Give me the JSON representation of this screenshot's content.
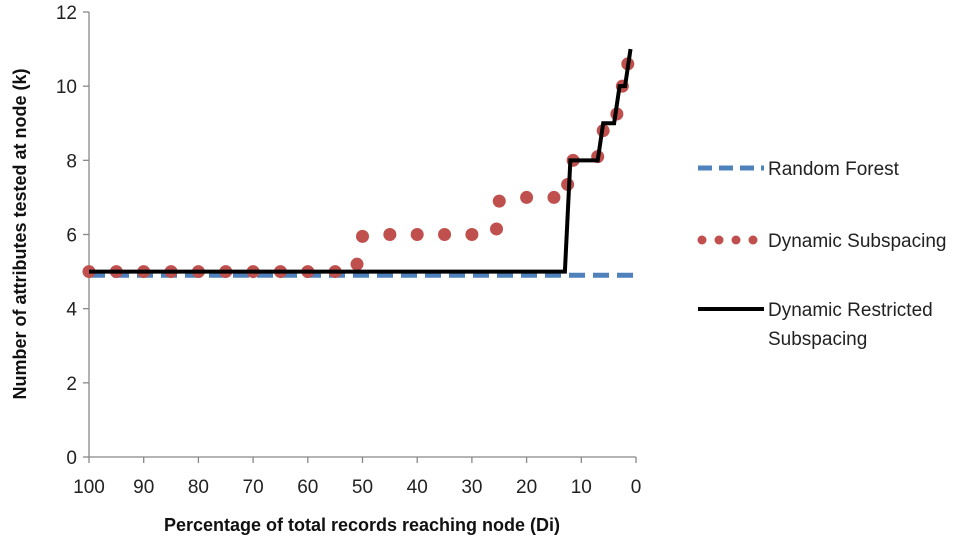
{
  "chart_data": {
    "type": "line",
    "xlabel": "Percentage of total records reaching node (Di)",
    "ylabel": "Number of attributes tested at node (k)",
    "xlim": [
      100,
      0
    ],
    "ylim": [
      0,
      12
    ],
    "x_ticks": [
      100,
      90,
      80,
      70,
      60,
      50,
      40,
      30,
      20,
      10,
      0
    ],
    "y_ticks": [
      0,
      2,
      4,
      6,
      8,
      10,
      12
    ],
    "grid": false,
    "legend_position": "right",
    "series": [
      {
        "name": "Random Forest",
        "style": "dashed",
        "color": "#4f81bd",
        "x": [
          100,
          0.5
        ],
        "y": [
          4.9,
          4.9
        ]
      },
      {
        "name": "Dynamic Subspacing",
        "style": "dotted",
        "color": "#c0504d",
        "x": [
          100,
          95,
          90,
          85,
          80,
          75,
          70,
          65,
          60,
          55,
          51,
          50,
          45,
          40,
          35,
          30,
          25.5,
          25,
          20,
          15,
          12.5,
          11.5,
          7,
          6,
          3.5,
          2.5,
          1.5
        ],
        "y": [
          5.0,
          5.0,
          5.0,
          5.0,
          5.0,
          5.0,
          5.0,
          5.0,
          5.0,
          5.0,
          5.2,
          5.95,
          6.0,
          6.0,
          6.0,
          6.0,
          6.15,
          6.9,
          7.0,
          7.0,
          7.35,
          8.0,
          8.1,
          8.8,
          9.25,
          10.0,
          10.6
        ]
      },
      {
        "name": "Dynamic Restricted Subspacing",
        "style": "solid",
        "color": "#000000",
        "x": [
          100,
          13,
          12,
          7,
          6,
          4,
          3,
          2,
          1
        ],
        "y": [
          5,
          5,
          8,
          8,
          9,
          9,
          10,
          10,
          11
        ]
      }
    ],
    "legend": {
      "random_forest": "Random Forest",
      "dynamic_subspacing": "Dynamic Subspacing",
      "dynamic_restricted_line1": "Dynamic Restricted",
      "dynamic_restricted_line2": "Subspacing"
    }
  }
}
